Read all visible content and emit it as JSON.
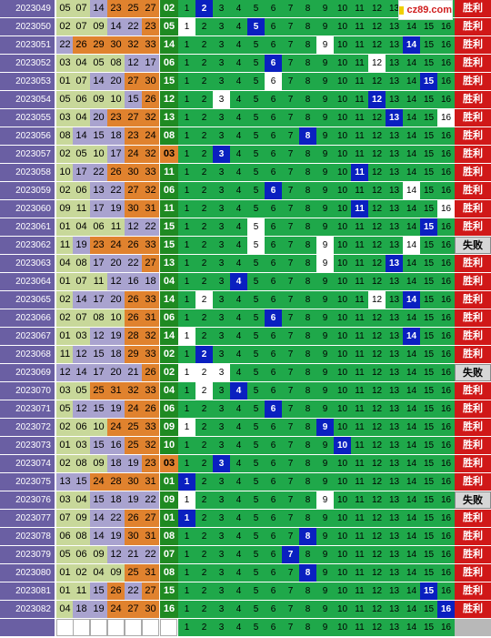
{
  "watermark": {
    "text": "cz89.com",
    "icon": "yellow-square-icon"
  },
  "colors": {
    "issue_bg": "#6a5fa3",
    "ball_green": "#c8d89a",
    "ball_purple": "#a9a3cf",
    "ball_orange": "#e0822e",
    "grid_green": "#1fa84a",
    "grid_hit": "#0a20c0",
    "win": "#d01818",
    "lose": "#d6d6d6"
  },
  "labels": {
    "win": "胜利",
    "lose": "失败"
  },
  "rows": [
    {
      "issue": "2023049",
      "reds": [
        "05",
        "07",
        "14",
        "23",
        "25",
        "27"
      ],
      "blue": "02",
      "hit": 2,
      "white": [],
      "result": "win"
    },
    {
      "issue": "2023050",
      "reds": [
        "02",
        "07",
        "09",
        "14",
        "22",
        "23"
      ],
      "blue": "05",
      "hit": 5,
      "white": [
        1
      ],
      "result": "win"
    },
    {
      "issue": "2023051",
      "reds": [
        "22",
        "26",
        "29",
        "30",
        "32",
        "33"
      ],
      "blue": "14",
      "hit": 14,
      "white": [
        9
      ],
      "result": "win"
    },
    {
      "issue": "2023052",
      "reds": [
        "03",
        "04",
        "05",
        "08",
        "12",
        "17"
      ],
      "blue": "06",
      "hit": 6,
      "white": [
        12
      ],
      "result": "win"
    },
    {
      "issue": "2023053",
      "reds": [
        "01",
        "07",
        "14",
        "20",
        "27",
        "30"
      ],
      "blue": "15",
      "hit": 15,
      "white": [
        6
      ],
      "result": "win"
    },
    {
      "issue": "2023054",
      "reds": [
        "05",
        "06",
        "09",
        "10",
        "15",
        "26"
      ],
      "blue": "12",
      "hit": 12,
      "white": [
        3
      ],
      "result": "win"
    },
    {
      "issue": "2023055",
      "reds": [
        "03",
        "04",
        "20",
        "23",
        "27",
        "32"
      ],
      "blue": "13",
      "hit": 13,
      "white": [
        16
      ],
      "result": "win"
    },
    {
      "issue": "2023056",
      "reds": [
        "08",
        "14",
        "15",
        "18",
        "23",
        "24"
      ],
      "blue": "08",
      "hit": 8,
      "white": [],
      "result": "win"
    },
    {
      "issue": "2023057",
      "reds": [
        "02",
        "05",
        "10",
        "17",
        "24",
        "32"
      ],
      "blue": "03",
      "hit": 3,
      "white": [],
      "result": "win"
    },
    {
      "issue": "2023058",
      "reds": [
        "10",
        "17",
        "22",
        "26",
        "30",
        "33"
      ],
      "blue": "11",
      "hit": 11,
      "white": [],
      "result": "win"
    },
    {
      "issue": "2023059",
      "reds": [
        "02",
        "06",
        "13",
        "22",
        "27",
        "32"
      ],
      "blue": "06",
      "hit": 6,
      "white": [
        14
      ],
      "result": "win"
    },
    {
      "issue": "2023060",
      "reds": [
        "09",
        "11",
        "17",
        "19",
        "30",
        "31"
      ],
      "blue": "11",
      "hit": 11,
      "white": [
        16
      ],
      "result": "win"
    },
    {
      "issue": "2023061",
      "reds": [
        "01",
        "04",
        "06",
        "11",
        "12",
        "22"
      ],
      "blue": "15",
      "hit": 15,
      "white": [
        5
      ],
      "result": "win"
    },
    {
      "issue": "2023062",
      "reds": [
        "11",
        "19",
        "23",
        "24",
        "26",
        "33"
      ],
      "blue": "15",
      "hit": 0,
      "white": [
        5,
        9,
        14
      ],
      "result": "lose"
    },
    {
      "issue": "2023063",
      "reds": [
        "04",
        "08",
        "17",
        "20",
        "22",
        "27"
      ],
      "blue": "13",
      "hit": 13,
      "white": [
        9
      ],
      "result": "win"
    },
    {
      "issue": "2023064",
      "reds": [
        "01",
        "07",
        "11",
        "12",
        "16",
        "18"
      ],
      "blue": "04",
      "hit": 4,
      "white": [],
      "result": "win"
    },
    {
      "issue": "2023065",
      "reds": [
        "02",
        "14",
        "17",
        "20",
        "26",
        "33"
      ],
      "blue": "14",
      "hit": 14,
      "white": [
        2,
        12
      ],
      "result": "win"
    },
    {
      "issue": "2023066",
      "reds": [
        "02",
        "07",
        "08",
        "10",
        "26",
        "31"
      ],
      "blue": "06",
      "hit": 6,
      "white": [],
      "result": "win"
    },
    {
      "issue": "2023067",
      "reds": [
        "01",
        "03",
        "12",
        "19",
        "28",
        "32"
      ],
      "blue": "14",
      "hit": 14,
      "white": [
        1
      ],
      "result": "win"
    },
    {
      "issue": "2023068",
      "reds": [
        "11",
        "12",
        "15",
        "18",
        "29",
        "33"
      ],
      "blue": "02",
      "hit": 2,
      "white": [],
      "result": "win"
    },
    {
      "issue": "2023069",
      "reds": [
        "12",
        "14",
        "17",
        "20",
        "21",
        "26"
      ],
      "blue": "02",
      "hit": 0,
      "white": [
        1,
        2,
        3
      ],
      "result": "lose"
    },
    {
      "issue": "2023070",
      "reds": [
        "03",
        "05",
        "25",
        "31",
        "32",
        "33"
      ],
      "blue": "04",
      "hit": 4,
      "white": [
        2
      ],
      "result": "win"
    },
    {
      "issue": "2023071",
      "reds": [
        "05",
        "12",
        "15",
        "19",
        "24",
        "26"
      ],
      "blue": "06",
      "hit": 6,
      "white": [],
      "result": "win"
    },
    {
      "issue": "2023072",
      "reds": [
        "02",
        "06",
        "10",
        "24",
        "25",
        "33"
      ],
      "blue": "09",
      "hit": 9,
      "white": [
        1
      ],
      "result": "win"
    },
    {
      "issue": "2023073",
      "reds": [
        "01",
        "03",
        "15",
        "16",
        "25",
        "32"
      ],
      "blue": "10",
      "hit": 10,
      "white": [],
      "result": "win"
    },
    {
      "issue": "2023074",
      "reds": [
        "02",
        "08",
        "09",
        "18",
        "19",
        "23"
      ],
      "blue": "03",
      "hit": 3,
      "white": [],
      "result": "win"
    },
    {
      "issue": "2023075",
      "reds": [
        "13",
        "15",
        "24",
        "28",
        "30",
        "31"
      ],
      "blue": "01",
      "hit": 1,
      "white": [],
      "result": "win"
    },
    {
      "issue": "2023076",
      "reds": [
        "03",
        "04",
        "15",
        "18",
        "19",
        "22"
      ],
      "blue": "09",
      "hit": 0,
      "white": [
        1,
        9
      ],
      "result": "lose"
    },
    {
      "issue": "2023077",
      "reds": [
        "07",
        "09",
        "14",
        "22",
        "26",
        "27"
      ],
      "blue": "01",
      "hit": 1,
      "white": [],
      "result": "win"
    },
    {
      "issue": "2023078",
      "reds": [
        "06",
        "08",
        "14",
        "19",
        "30",
        "31"
      ],
      "blue": "08",
      "hit": 8,
      "white": [],
      "result": "win"
    },
    {
      "issue": "2023079",
      "reds": [
        "05",
        "06",
        "09",
        "12",
        "21",
        "22"
      ],
      "blue": "07",
      "hit": 7,
      "white": [],
      "result": "win"
    },
    {
      "issue": "2023080",
      "reds": [
        "01",
        "02",
        "04",
        "09",
        "25",
        "31"
      ],
      "blue": "08",
      "hit": 8,
      "white": [],
      "result": "win"
    },
    {
      "issue": "2023081",
      "reds": [
        "01",
        "11",
        "15",
        "26",
        "22",
        "27"
      ],
      "blue": "15",
      "hit": 15,
      "white": [],
      "result": "win"
    },
    {
      "issue": "2023082",
      "reds": [
        "04",
        "18",
        "19",
        "24",
        "27",
        "30"
      ],
      "blue": "16",
      "hit": 16,
      "white": [],
      "result": "win"
    }
  ],
  "footer_numbers": [
    "1",
    "2",
    "3",
    "4",
    "5",
    "6",
    "7",
    "8",
    "9",
    "10",
    "11",
    "12",
    "13",
    "14",
    "15",
    "16"
  ]
}
